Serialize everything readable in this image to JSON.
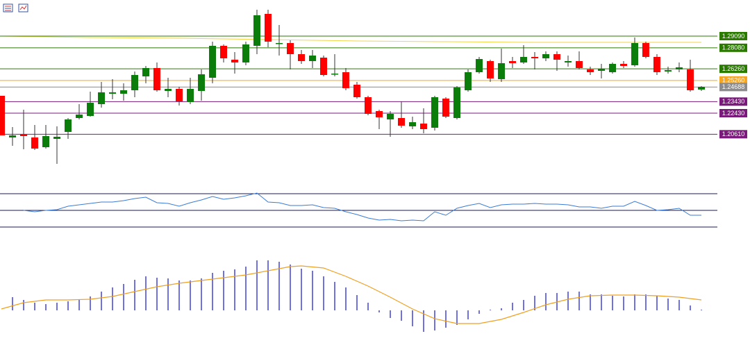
{
  "chart_data": [
    {
      "type": "candlestick",
      "xlim": [
        0,
        63
      ],
      "ylim": [
        1.1781,
        1.3221
      ],
      "up_color": "#0b7d0b",
      "down_color": "#ff0000",
      "ohlc": [
        [
          1.2393,
          1.2393,
          1.2051,
          1.2051
        ],
        [
          1.2033,
          1.2123,
          1.1961,
          1.2051
        ],
        [
          1.2063,
          1.2273,
          1.1931,
          1.2045
        ],
        [
          1.2033,
          1.2141,
          1.1925,
          1.1937
        ],
        [
          1.1949,
          1.2141,
          1.1937,
          1.2045
        ],
        [
          1.2021,
          1.2129,
          1.1805,
          1.2039
        ],
        [
          1.2081,
          1.2201,
          1.2021,
          1.2189
        ],
        [
          1.2201,
          1.2321,
          1.2189,
          1.2231
        ],
        [
          1.2219,
          1.2429,
          1.2213,
          1.2333
        ],
        [
          1.2321,
          1.2513,
          1.2291,
          1.2423
        ],
        [
          1.2411,
          1.2537,
          1.2363,
          1.2423
        ],
        [
          1.2411,
          1.2501,
          1.2351,
          1.2441
        ],
        [
          1.2441,
          1.2603,
          1.2381,
          1.2573
        ],
        [
          1.2561,
          1.2651,
          1.2501,
          1.2633
        ],
        [
          1.2633,
          1.2681,
          1.2429,
          1.2441
        ],
        [
          1.2435,
          1.2549,
          1.2381,
          1.2453
        ],
        [
          1.2453,
          1.2471,
          1.2309,
          1.2345
        ],
        [
          1.2339,
          1.2549,
          1.2321,
          1.2453
        ],
        [
          1.2435,
          1.2621,
          1.2351,
          1.2579
        ],
        [
          1.2549,
          1.2861,
          1.2501,
          1.2825
        ],
        [
          1.2825,
          1.2837,
          1.2681,
          1.2717
        ],
        [
          1.2705,
          1.2771,
          1.2585,
          1.2681
        ],
        [
          1.2681,
          1.2861,
          1.2657,
          1.2837
        ],
        [
          1.2825,
          1.3137,
          1.2753,
          1.3089
        ],
        [
          1.3101,
          1.3137,
          1.2813,
          1.2861
        ],
        [
          1.2843,
          1.3005,
          1.2741,
          1.2849
        ],
        [
          1.2849,
          1.2873,
          1.2621,
          1.2753
        ],
        [
          1.2753,
          1.2789,
          1.2669,
          1.2693
        ],
        [
          1.2693,
          1.2789,
          1.2633,
          1.2741
        ],
        [
          1.2723,
          1.2741,
          1.2561,
          1.2573
        ],
        [
          1.2579,
          1.2753,
          1.2561,
          1.2585
        ],
        [
          1.2597,
          1.2633,
          1.2441,
          1.2459
        ],
        [
          1.2489,
          1.2513,
          1.2369,
          1.2381
        ],
        [
          1.2381,
          1.2393,
          1.2225,
          1.2237
        ],
        [
          1.2261,
          1.2273,
          1.2105,
          1.2207
        ],
        [
          1.2189,
          1.2261,
          1.2039,
          1.2237
        ],
        [
          1.2201,
          1.2345,
          1.2117,
          1.2135
        ],
        [
          1.2129,
          1.2213,
          1.2105,
          1.2165
        ],
        [
          1.2153,
          1.2285,
          1.2069,
          1.2105
        ],
        [
          1.2117,
          1.2393,
          1.2093,
          1.2381
        ],
        [
          1.2369,
          1.2381,
          1.2201,
          1.2213
        ],
        [
          1.2201,
          1.2477,
          1.2189,
          1.2465
        ],
        [
          1.2441,
          1.2621,
          1.2429,
          1.2597
        ],
        [
          1.2597,
          1.2729,
          1.2585,
          1.2711
        ],
        [
          1.2693,
          1.2705,
          1.2513,
          1.2543
        ],
        [
          1.2537,
          1.2801,
          1.2513,
          1.2675
        ],
        [
          1.2693,
          1.2729,
          1.2633,
          1.2675
        ],
        [
          1.2681,
          1.2831,
          1.2669,
          1.2729
        ],
        [
          1.2729,
          1.2771,
          1.2621,
          1.2717
        ],
        [
          1.2717,
          1.2777,
          1.2693,
          1.2753
        ],
        [
          1.2753,
          1.2777,
          1.2609,
          1.2705
        ],
        [
          1.2681,
          1.2741,
          1.2645,
          1.2693
        ],
        [
          1.2693,
          1.2777,
          1.2621,
          1.2633
        ],
        [
          1.2621,
          1.2645,
          1.2573,
          1.2597
        ],
        [
          1.2609,
          1.2669,
          1.2543,
          1.2627
        ],
        [
          1.2597,
          1.2681,
          1.2585,
          1.2669
        ],
        [
          1.2669,
          1.2693,
          1.2633,
          1.2651
        ],
        [
          1.2657,
          1.2897,
          1.2645,
          1.2849
        ],
        [
          1.2849,
          1.2861,
          1.2717,
          1.2729
        ],
        [
          1.2729,
          1.2753,
          1.2573,
          1.2597
        ],
        [
          1.2603,
          1.2645,
          1.2585,
          1.2615
        ],
        [
          1.2621,
          1.2681,
          1.2597,
          1.2639
        ],
        [
          1.2621,
          1.2705,
          1.2429,
          1.2441
        ],
        [
          1.2447,
          1.2477,
          1.2435,
          1.2471
        ]
      ],
      "ma": {
        "color": "#f2d64b",
        "x": [
          0,
          8,
          16,
          24,
          32,
          40,
          48,
          56,
          63
        ],
        "values": [
          1.2909,
          1.2897,
          1.2891,
          1.2879,
          1.2867,
          1.2861,
          1.2855,
          1.2855,
          1.2855
        ]
      },
      "levels": [
        {
          "value": 1.2909,
          "label": "1.29090",
          "color": "#2a7a00"
        },
        {
          "value": 1.2808,
          "label": "1.28080",
          "color": "#2a7a00"
        },
        {
          "value": 1.2626,
          "label": "1.26260",
          "color": "#2a7a00"
        },
        {
          "value": 1.2526,
          "label": "1.25260",
          "color": "#f5a623"
        },
        {
          "value": 1.24688,
          "label": "1.24688",
          "color": "#8c8c8c"
        },
        {
          "value": 1.2343,
          "label": "1.23430",
          "color": "#7a1a7a"
        },
        {
          "value": 1.2243,
          "label": "1.22430",
          "color": "#7a1a7a"
        },
        {
          "value": 1.2061,
          "label": "1.20610",
          "color": "#7a1a7a"
        }
      ]
    },
    {
      "type": "line",
      "xlim": [
        0,
        63
      ],
      "ylim": [
        20,
        80
      ],
      "color": "#3a7bd5",
      "levels": [
        70,
        50,
        30
      ],
      "values": [
        null,
        null,
        50,
        48.3,
        50,
        50.8,
        55,
        56.7,
        58.3,
        60,
        60,
        61.7,
        64.2,
        65.8,
        59.2,
        58.3,
        55,
        59.2,
        62.5,
        66.7,
        63.3,
        65,
        67.5,
        70.8,
        60,
        59.2,
        55.8,
        55.8,
        56.7,
        53.3,
        52.5,
        48.3,
        45,
        40.8,
        38.3,
        39.2,
        37.5,
        38.3,
        37.5,
        48.3,
        44.2,
        52.5,
        55.8,
        58.3,
        53.3,
        56.7,
        57.5,
        57.5,
        58.3,
        57.5,
        57.5,
        56.7,
        54.2,
        54.2,
        52.5,
        55,
        55,
        60.8,
        55.8,
        50,
        50.8,
        52.5,
        44.2,
        44.2
      ]
    },
    {
      "type": "bar",
      "xlim": [
        0,
        63
      ],
      "ylim": [
        -0.006,
        0.0107
      ],
      "color": "#1010c8",
      "values": [
        null,
        0.0019,
        0.0015,
        0.0011,
        0.0009,
        0.0011,
        0.0013,
        0.0015,
        0.002,
        0.0027,
        0.0033,
        0.0038,
        0.0044,
        0.0049,
        0.0047,
        0.0046,
        0.0043,
        0.0043,
        0.0046,
        0.0054,
        0.0057,
        0.0059,
        0.0063,
        0.0072,
        0.0072,
        0.007,
        0.0066,
        0.006,
        0.0057,
        0.0049,
        0.0041,
        0.0033,
        0.0022,
        0.0011,
        -0.0003,
        -0.0011,
        -0.0015,
        -0.0023,
        -0.0031,
        -0.0029,
        -0.0025,
        -0.0021,
        -0.0013,
        -0.0005,
        0,
        0.0003,
        0.0011,
        0.0015,
        0.0021,
        0.0025,
        0.0025,
        0.0027,
        0.0027,
        0.0023,
        0.0023,
        0.0021,
        0.002,
        0.0023,
        0.0023,
        0.0021,
        0.0017,
        0.0015,
        0.0007,
        0.0001
      ],
      "signal": {
        "color": "#f0a020",
        "x": [
          0,
          2,
          4,
          6,
          8,
          10,
          12,
          14,
          16,
          18,
          20,
          22,
          24,
          26,
          27,
          29,
          31,
          33,
          35,
          37,
          39,
          41,
          43,
          45,
          47,
          49,
          51,
          53,
          55,
          57,
          59,
          61,
          63
        ],
        "values": [
          0.0002,
          0.0011,
          0.0015,
          0.0015,
          0.0016,
          0.002,
          0.0027,
          0.0034,
          0.0039,
          0.0043,
          0.0047,
          0.0051,
          0.0057,
          0.0063,
          0.0064,
          0.0061,
          0.0049,
          0.0035,
          0.0019,
          0.0002,
          -0.0012,
          -0.0019,
          -0.0019,
          -0.0013,
          -0.0003,
          0.0008,
          0.0016,
          0.0021,
          0.0022,
          0.0022,
          0.0021,
          0.0019,
          0.0015
        ]
      }
    }
  ]
}
